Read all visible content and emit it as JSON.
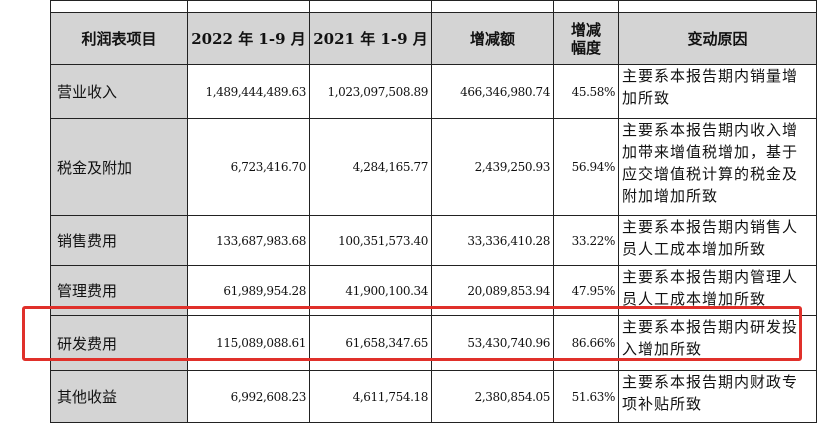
{
  "table": {
    "headers": [
      "利润表项目",
      "2022 年 1-9 月",
      "2021 年 1-9 月",
      "增减额",
      "增减幅度",
      "变动原因"
    ],
    "top_cut_text": "",
    "rows": [
      {
        "item": "营业收入",
        "y2022": "1,489,444,489.63",
        "y2021": "1,023,097,508.89",
        "change": "466,346,980.74",
        "pct": "45.58%",
        "reason_lines": [
          "主要系本报告期内销量增",
          "加所致"
        ]
      },
      {
        "item": "税金及附加",
        "y2022": "6,723,416.70",
        "y2021": "4,284,165.77",
        "change": "2,439,250.93",
        "pct": "56.94%",
        "reason_lines": [
          "主要系本报告期内收入增",
          "加带来增值税增加，基于",
          "应交增值税计算的税金及",
          "附加增加所致"
        ]
      },
      {
        "item": "销售费用",
        "y2022": "133,687,983.68",
        "y2021": "100,351,573.40",
        "change": "33,336,410.28",
        "pct": "33.22%",
        "reason_lines": [
          "主要系本报告期内销售人",
          "员人工成本增加所致"
        ]
      },
      {
        "item": "管理费用",
        "y2022": "61,989,954.28",
        "y2021": "41,900,100.34",
        "change": "20,089,853.94",
        "pct": "47.95%",
        "reason_lines": [
          "主要系本报告期内管理人",
          "员人工成本增加所致"
        ]
      },
      {
        "item": "研发费用",
        "y2022": "115,089,088.61",
        "y2021": "61,658,347.65",
        "change": "53,430,740.96",
        "pct": "86.66%",
        "reason_lines": [
          "主要系本报告期内研发投",
          "入增加所致"
        ]
      },
      {
        "item": "其他收益",
        "y2022": "6,992,608.23",
        "y2021": "4,611,754.18",
        "change": "2,380,854.05",
        "pct": "51.63%",
        "reason_lines": [
          "主要系本报告期内财政专",
          "项补贴所致"
        ]
      }
    ]
  },
  "colors": {
    "header_bg": "#d4d4d4",
    "highlight": "#e0302a"
  }
}
